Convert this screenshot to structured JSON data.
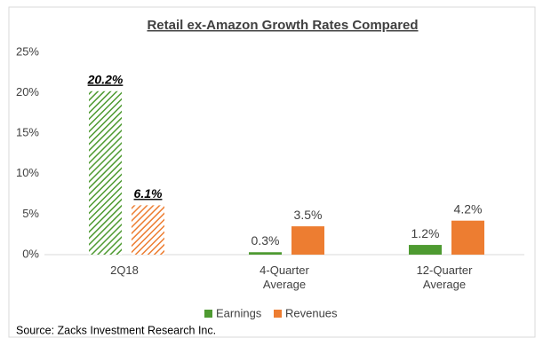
{
  "chart_data": {
    "type": "bar",
    "title": "Retail ex-Amazon Growth Rates Compared",
    "categories": [
      "2Q18",
      "4-Quarter Average",
      "12-Quarter Average"
    ],
    "series": [
      {
        "name": "Earnings",
        "color": "#4e9a31",
        "values": [
          20.2,
          0.3,
          1.2
        ],
        "value_labels": [
          "20.2%",
          "0.3%",
          "1.2%"
        ]
      },
      {
        "name": "Revenues",
        "color": "#ed7d31",
        "values": [
          6.1,
          3.5,
          4.2
        ],
        "value_labels": [
          "6.1%",
          "3.5%",
          "4.2%"
        ]
      }
    ],
    "ylim": [
      0,
      25
    ],
    "yticks": [
      {
        "value": 0,
        "label": "0%"
      },
      {
        "value": 5,
        "label": "5%"
      },
      {
        "value": 10,
        "label": "10%"
      },
      {
        "value": 15,
        "label": "15%"
      },
      {
        "value": 20,
        "label": "20%"
      },
      {
        "value": 25,
        "label": "25%"
      }
    ],
    "grid": false,
    "legend": "bottom",
    "source": "Source: Zacks Investment Research Inc."
  }
}
